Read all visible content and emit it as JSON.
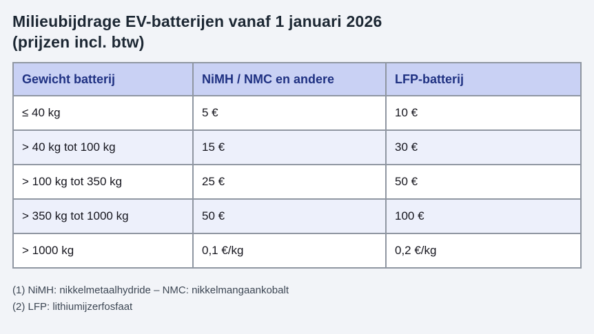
{
  "page": {
    "title_line1": "Milieubijdrage EV-batterijen vanaf 1 januari 2026",
    "title_line2": "(prijzen incl. btw)"
  },
  "table": {
    "headers": [
      "Gewicht batterij",
      "NiMH / NMC en andere",
      "LFP-batterij"
    ],
    "rows": [
      [
        "≤ 40 kg",
        "5 €",
        "10 €"
      ],
      [
        "> 40 kg tot 100 kg",
        "15 €",
        "30 €"
      ],
      [
        "> 100 kg tot 350 kg",
        "25 €",
        "50 €"
      ],
      [
        "> 350 kg tot 1000 kg",
        "50 €",
        "100 €"
      ],
      [
        "> 1000 kg",
        "0,1 €/kg",
        "0,2 €/kg"
      ]
    ]
  },
  "footnotes": [
    "(1) NiMH: nikkelmetaalhydride – NMC: nikkelmangaankobalt",
    "(2) LFP: lithiumijzerfosfaat"
  ],
  "colors": {
    "page_bg": "#f2f4f8",
    "header_bg": "#c9d1f4",
    "alt_row_bg": "#edf0fb",
    "row_bg": "#ffffff",
    "border": "#8f96a1",
    "header_text": "#1f3182",
    "body_text": "#15151d",
    "title_text": "#1c2733",
    "footnote_text": "#3d4754"
  }
}
